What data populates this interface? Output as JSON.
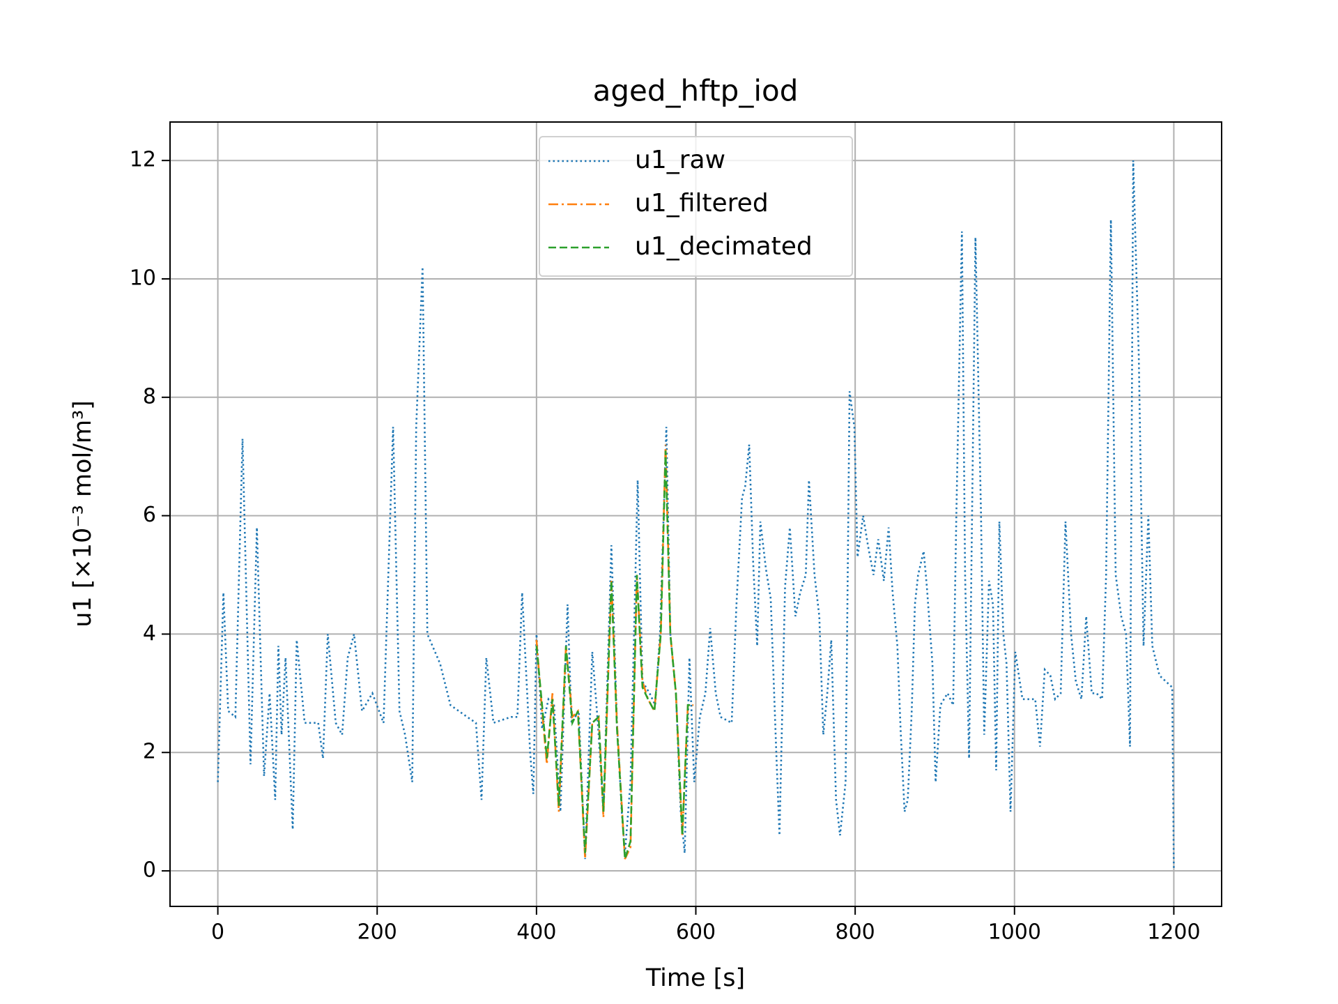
{
  "chart_data": {
    "type": "line",
    "title": "aged_hftp_iod",
    "x_label": "Time [s]",
    "y_label": "u1   [×10⁻³ mol/m³]",
    "xlim": [
      -60,
      1260
    ],
    "ylim": [
      -0.6,
      12.65
    ],
    "xticks": [
      0,
      200,
      400,
      600,
      800,
      1000,
      1200
    ],
    "yticks": [
      0,
      2,
      4,
      6,
      8,
      10,
      12
    ],
    "grid": true,
    "legend": "upper center",
    "series": [
      {
        "name": "u1_raw",
        "color": "#1f77b4",
        "linestyle": "dotted",
        "x": [
          0,
          7,
          13,
          22,
          31,
          41,
          49,
          58,
          65,
          72,
          76,
          80,
          85,
          94,
          99,
          109,
          126,
          132,
          138,
          148,
          156,
          163,
          171,
          181,
          194,
          208,
          220,
          228,
          235,
          244,
          249,
          257,
          263,
          279,
          292,
          313,
          324,
          331,
          337,
          346,
          368,
          376,
          382,
          392,
          396,
          400,
          407,
          415,
          422,
          430,
          439,
          444,
          453,
          461,
          470,
          477,
          484,
          494,
          501,
          507,
          511,
          518,
          527,
          533,
          542,
          549,
          555,
          563,
          568,
          575,
          581,
          586,
          592,
          598,
          605,
          612,
          618,
          625,
          631,
          645,
          651,
          658,
          662,
          667,
          672,
          677,
          681,
          688,
          694,
          701,
          705,
          712,
          718,
          725,
          731,
          738,
          742,
          749,
          755,
          760,
          765,
          770,
          776,
          781,
          788,
          793,
          799,
          803,
          810,
          816,
          823,
          829,
          836,
          842,
          847,
          853,
          857,
          862,
          866,
          871,
          875,
          879,
          886,
          890,
          897,
          901,
          907,
          916,
          923,
          927,
          934,
          938,
          943,
          951,
          958,
          962,
          968,
          973,
          977,
          981,
          986,
          990,
          995,
          1001,
          1010,
          1026,
          1032,
          1038,
          1045,
          1051,
          1058,
          1064,
          1071,
          1077,
          1084,
          1090,
          1097,
          1103,
          1110,
          1115,
          1121,
          1127,
          1134,
          1140,
          1145,
          1149,
          1156,
          1162,
          1168,
          1173,
          1182,
          1190,
          1198,
          1200
        ],
        "values": [
          1.5,
          4.7,
          2.7,
          2.6,
          7.3,
          1.8,
          5.8,
          1.6,
          3.0,
          1.2,
          3.8,
          2.3,
          3.6,
          0.7,
          3.9,
          2.5,
          2.5,
          1.9,
          4.0,
          2.5,
          2.3,
          3.6,
          4.0,
          2.7,
          3.0,
          2.5,
          7.5,
          2.7,
          2.3,
          1.5,
          7.5,
          10.2,
          4.0,
          3.5,
          2.8,
          2.6,
          2.5,
          1.2,
          3.6,
          2.5,
          2.6,
          2.6,
          4.7,
          2.0,
          1.3,
          4.0,
          2.4,
          2.9,
          2.8,
          1.0,
          4.5,
          2.5,
          2.7,
          0.2,
          3.7,
          2.5,
          1.0,
          5.5,
          2.5,
          1.0,
          0.3,
          1.5,
          6.6,
          3.2,
          3.0,
          2.8,
          4.0,
          7.5,
          4.0,
          3.0,
          1.0,
          0.3,
          3.6,
          1.5,
          2.6,
          3.0,
          4.1,
          3.0,
          2.6,
          2.5,
          4.5,
          6.3,
          6.5,
          7.2,
          5.2,
          3.8,
          5.9,
          5.1,
          4.6,
          2.0,
          0.6,
          4.8,
          5.8,
          4.3,
          4.7,
          5.0,
          6.6,
          5.0,
          4.3,
          2.3,
          3.0,
          3.9,
          1.2,
          0.6,
          1.5,
          8.1,
          7.5,
          5.3,
          6.0,
          5.5,
          5.0,
          5.6,
          4.9,
          5.8,
          4.7,
          3.8,
          2.4,
          1.0,
          1.2,
          2.7,
          4.5,
          5.0,
          5.4,
          4.8,
          3.5,
          1.5,
          2.8,
          3.0,
          2.8,
          6.0,
          10.8,
          5.0,
          1.9,
          10.7,
          6.0,
          2.3,
          4.9,
          4.5,
          1.7,
          5.9,
          4.0,
          3.5,
          1.0,
          3.7,
          2.9,
          2.9,
          2.1,
          3.4,
          3.3,
          2.9,
          3.0,
          5.9,
          4.0,
          3.2,
          2.9,
          4.3,
          3.0,
          3.0,
          2.9,
          5.0,
          11.0,
          5.0,
          4.3,
          4.0,
          2.1,
          12.0,
          8.7,
          3.8,
          6.0,
          3.8,
          3.3,
          3.2,
          3.1,
          0.05
        ]
      },
      {
        "name": "u1_filtered",
        "color": "#ff7f0e",
        "linestyle": "dashdot",
        "x": [
          400,
          407,
          413,
          420,
          428,
          437,
          445,
          452,
          461,
          470,
          478,
          484,
          494,
          501,
          511,
          518,
          526,
          533,
          540,
          548,
          556,
          562,
          568,
          575,
          583,
          590,
          597
        ],
        "values": [
          3.9,
          2.7,
          1.8,
          3.0,
          1.0,
          3.8,
          2.6,
          2.7,
          0.2,
          2.5,
          2.6,
          0.9,
          4.9,
          2.5,
          0.2,
          0.4,
          5.0,
          3.2,
          2.9,
          2.7,
          4.0,
          7.2,
          4.0,
          3.0,
          0.6,
          2.8,
          2.8
        ]
      },
      {
        "name": "u1_decimated",
        "color": "#2ca02c",
        "linestyle": "dashed",
        "x": [
          400,
          407,
          413,
          420,
          428,
          437,
          445,
          452,
          461,
          470,
          478,
          484,
          494,
          501,
          511,
          518,
          526,
          533,
          540,
          548,
          556,
          562,
          568,
          575,
          583,
          590,
          597
        ],
        "values": [
          3.8,
          2.8,
          1.9,
          2.9,
          1.1,
          3.8,
          2.5,
          2.7,
          0.3,
          2.5,
          2.6,
          1.0,
          4.9,
          2.4,
          0.2,
          0.5,
          5.0,
          3.1,
          2.9,
          2.7,
          4.0,
          7.1,
          4.0,
          3.0,
          0.6,
          2.8,
          2.8
        ]
      }
    ]
  }
}
